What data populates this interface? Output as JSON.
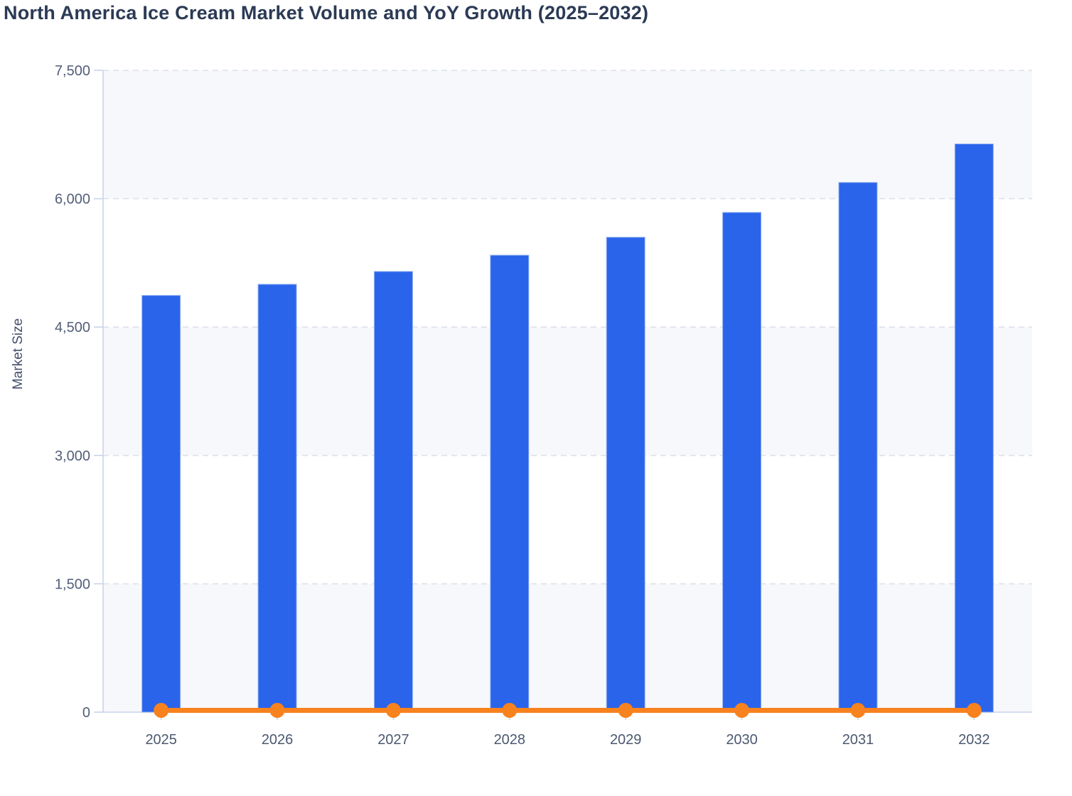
{
  "title": "North America Ice Cream Market Volume and YoY Growth (2025–2032)",
  "colors": {
    "background": "#ffffff",
    "bar": "#2a64ea",
    "bar_border": "#93b2f2",
    "line": "#f8821e",
    "title_text": "#2b3a55",
    "axis_text": "#525e78",
    "axis_line": "#c9d3ea",
    "gridline": "#dde1ea",
    "band": "#f7f8fb"
  },
  "chart_data": {
    "type": "bar",
    "title": "North America Ice Cream Market Volume and YoY Growth (2025–2032)",
    "xlabel": "",
    "ylabel": "Market Size",
    "categories": [
      "2025",
      "2026",
      "2027",
      "2028",
      "2029",
      "2030",
      "2031",
      "2032"
    ],
    "series": [
      {
        "name": "Market Volume",
        "type": "bar",
        "values": [
          4870,
          5000,
          5150,
          5340,
          5550,
          5840,
          6190,
          6640
        ]
      },
      {
        "name": "YoY Growth",
        "type": "line",
        "values": [
          0,
          0,
          0,
          0,
          0,
          0,
          0,
          0
        ],
        "note": "line with round markers rendered flat at ~0 on the left axis"
      }
    ],
    "ylim": [
      0,
      7500
    ],
    "yticks": [
      0,
      1500,
      3000,
      4500,
      6000,
      7500
    ],
    "ytick_labels": [
      "0",
      "1,500",
      "3,000",
      "4,500",
      "6,000",
      "7,500"
    ],
    "grid": "horizontal dashed, alternating shaded bands starting at top",
    "legend": "none"
  }
}
